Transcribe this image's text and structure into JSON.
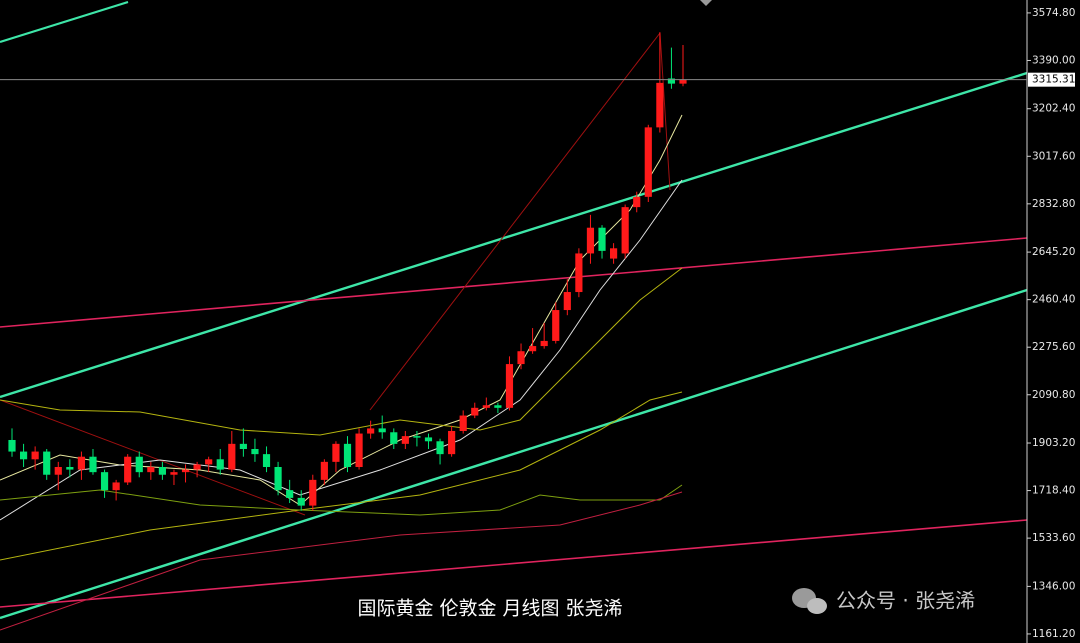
{
  "chart_data": {
    "type": "candlestick",
    "ylim": [
      1126,
      3625
    ],
    "yticks": [
      {
        "value": 3574.8,
        "label": "3574.80"
      },
      {
        "value": 3390,
        "label": "3390.00"
      },
      {
        "value": 3202.4,
        "label": "3202.40"
      },
      {
        "value": 3017.6,
        "label": "3017.60"
      },
      {
        "value": 2832.8,
        "label": "2832.80"
      },
      {
        "value": 2645.2,
        "label": "2645.20"
      },
      {
        "value": 2460.4,
        "label": "2460.40"
      },
      {
        "value": 2275.6,
        "label": "2275.60"
      },
      {
        "value": 2090.8,
        "label": "2090.80"
      },
      {
        "value": 1903.2,
        "label": "1903.20"
      },
      {
        "value": 1718.4,
        "label": "1718.40"
      },
      {
        "value": 1533.6,
        "label": "1533.60"
      },
      {
        "value": 1346,
        "label": "1346.00"
      },
      {
        "value": 1161.2,
        "label": "1161.20"
      }
    ],
    "current_price": 3315.31,
    "up_color": "#ff1a1a",
    "down_color": "#00e676",
    "open": [
      1915,
      1870,
      1840,
      1870,
      1780,
      1810,
      1800,
      1850,
      1790,
      1720,
      1750,
      1850,
      1790,
      1810,
      1780,
      1790,
      1800,
      1820,
      1840,
      1800,
      1900,
      1880,
      1860,
      1810,
      1720,
      1690,
      1660,
      1760,
      1830,
      1900,
      1810,
      1940,
      1960,
      1945,
      1900,
      1930,
      1925,
      1910,
      1860,
      1950,
      2010,
      2040,
      2050,
      2040,
      2210,
      2260,
      2280,
      2300,
      2420,
      2490,
      2640,
      2740,
      2620,
      2640,
      2820,
      2860,
      3130,
      3320,
      3300
    ],
    "high": [
      1960,
      1900,
      1890,
      1880,
      1830,
      1840,
      1870,
      1880,
      1800,
      1760,
      1860,
      1870,
      1830,
      1830,
      1800,
      1820,
      1830,
      1850,
      1880,
      1950,
      1960,
      1920,
      1890,
      1830,
      1760,
      1720,
      1780,
      1840,
      1910,
      1930,
      1960,
      1990,
      2010,
      1960,
      1950,
      1950,
      1940,
      1920,
      1970,
      2030,
      2060,
      2080,
      2060,
      2240,
      2290,
      2350,
      2370,
      2450,
      2540,
      2660,
      2790,
      2750,
      2680,
      2830,
      2880,
      3140,
      3500,
      3440,
      3450
    ],
    "low": [
      1850,
      1810,
      1800,
      1760,
      1720,
      1770,
      1760,
      1780,
      1690,
      1680,
      1740,
      1770,
      1760,
      1760,
      1740,
      1750,
      1770,
      1790,
      1780,
      1790,
      1850,
      1830,
      1790,
      1700,
      1670,
      1640,
      1640,
      1740,
      1790,
      1790,
      1800,
      1920,
      1920,
      1880,
      1880,
      1890,
      1880,
      1820,
      1850,
      1940,
      2000,
      2030,
      2020,
      2030,
      2190,
      2250,
      2270,
      2290,
      2400,
      2470,
      2600,
      2620,
      2600,
      2620,
      2800,
      2840,
      3110,
      3280,
      3290
    ],
    "close": [
      1870,
      1840,
      1870,
      1780,
      1810,
      1800,
      1850,
      1790,
      1720,
      1750,
      1850,
      1790,
      1810,
      1780,
      1790,
      1800,
      1820,
      1840,
      1800,
      1900,
      1880,
      1860,
      1810,
      1720,
      1690,
      1660,
      1760,
      1830,
      1900,
      1810,
      1940,
      1960,
      1945,
      1900,
      1930,
      1925,
      1910,
      1860,
      1950,
      2010,
      2040,
      2050,
      2040,
      2210,
      2260,
      2280,
      2300,
      2420,
      2490,
      2640,
      2740,
      2650,
      2660,
      2820,
      2860,
      3130,
      3303,
      3300,
      3315
    ]
  },
  "caption": "国际黄金 伦敦金 月线图 张尧浠",
  "watermark": "公众号 · 张尧浠"
}
